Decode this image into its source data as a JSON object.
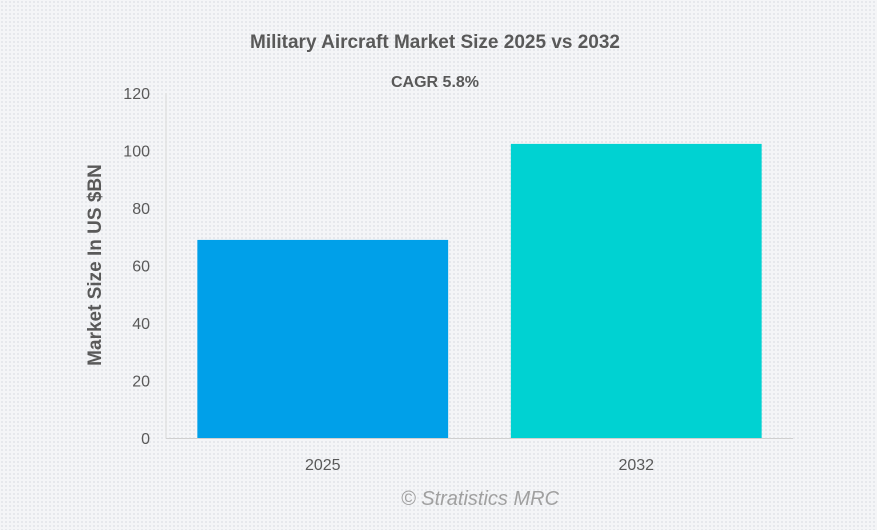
{
  "chart_data": {
    "type": "bar",
    "title": "Military Aircraft Market Size 2025 vs 2032",
    "subtitle": "CAGR 5.8%",
    "xlabel": "",
    "ylabel": "Market Size In US $BN",
    "categories": [
      "2025",
      "2032"
    ],
    "values": [
      68.9,
      102.3
    ],
    "colors": [
      "#00a0e9",
      "#00d2d2"
    ],
    "ylim": [
      0,
      120
    ],
    "yticks": [
      0,
      20,
      40,
      60,
      80,
      100,
      120
    ],
    "ytick_labels": [
      "0",
      "20",
      "40",
      "60",
      "80",
      "100",
      "120"
    ],
    "grid": false,
    "legend": "none"
  },
  "credit": "© Stratistics MRC"
}
